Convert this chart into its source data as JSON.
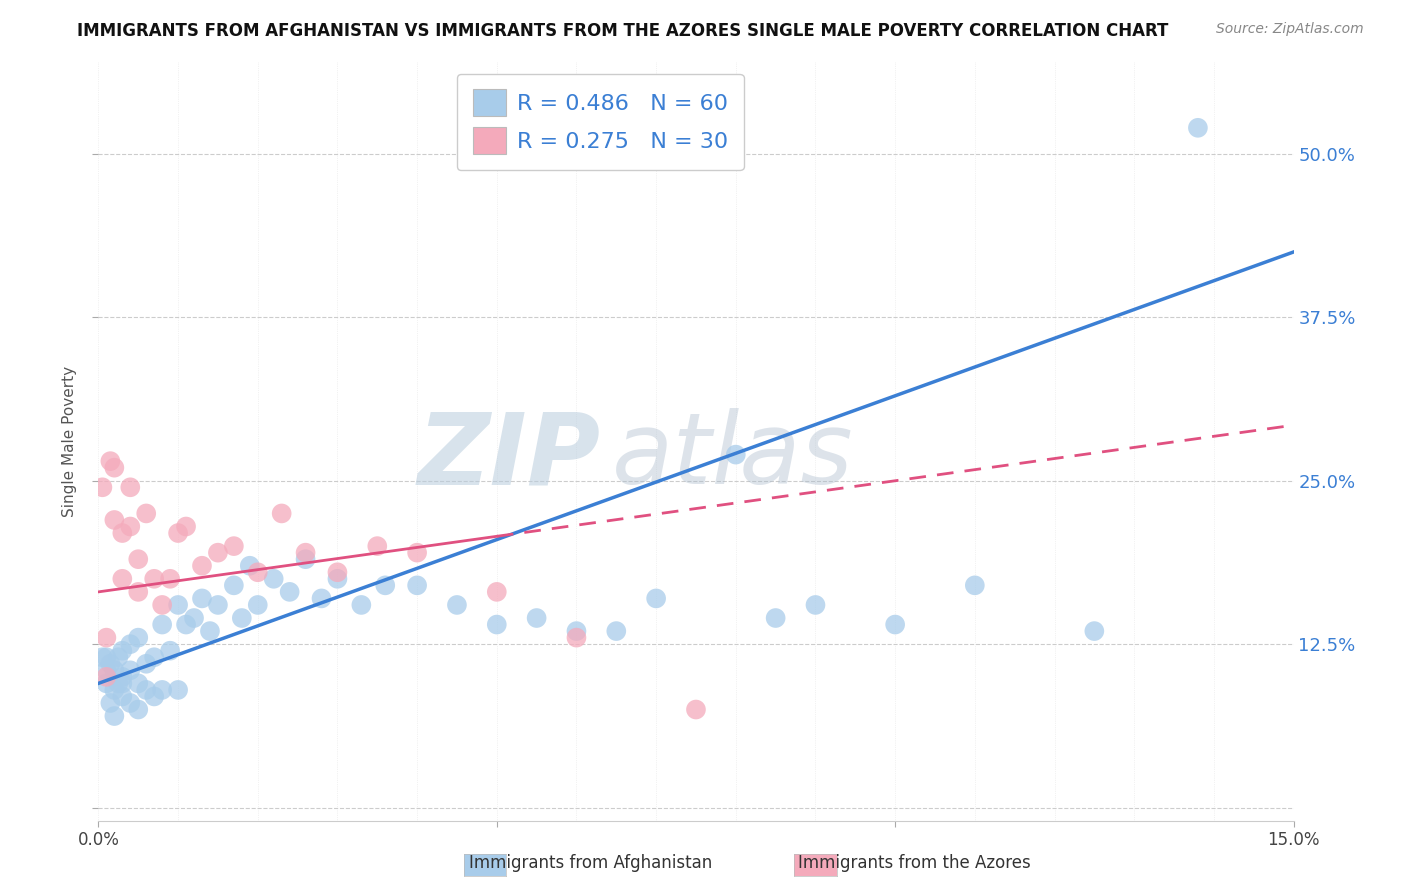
{
  "title": "IMMIGRANTS FROM AFGHANISTAN VS IMMIGRANTS FROM THE AZORES SINGLE MALE POVERTY CORRELATION CHART",
  "source": "Source: ZipAtlas.com",
  "xlabel_blue": "Immigrants from Afghanistan",
  "xlabel_pink": "Immigrants from the Azores",
  "ylabel": "Single Male Poverty",
  "R_blue": 0.486,
  "N_blue": 60,
  "R_pink": 0.275,
  "N_pink": 30,
  "color_blue": "#A8CCEA",
  "color_pink": "#F4AABB",
  "line_blue": "#3B7FD4",
  "line_pink": "#E05080",
  "xlim": [
    0.0,
    0.15
  ],
  "ylim": [
    -0.01,
    0.57
  ],
  "yticks": [
    0.0,
    0.125,
    0.25,
    0.375,
    0.5
  ],
  "ytick_labels": [
    "",
    "12.5%",
    "25.0%",
    "37.5%",
    "50.0%"
  ],
  "xticks": [
    0.0,
    0.05,
    0.1,
    0.15
  ],
  "xtick_labels": [
    "0.0%",
    "",
    "",
    "15.0%"
  ],
  "blue_x": [
    0.0005,
    0.001,
    0.001,
    0.001,
    0.0015,
    0.0015,
    0.002,
    0.002,
    0.002,
    0.0025,
    0.0025,
    0.003,
    0.003,
    0.003,
    0.003,
    0.004,
    0.004,
    0.004,
    0.005,
    0.005,
    0.005,
    0.006,
    0.006,
    0.007,
    0.007,
    0.008,
    0.008,
    0.009,
    0.01,
    0.01,
    0.011,
    0.012,
    0.013,
    0.014,
    0.015,
    0.017,
    0.018,
    0.019,
    0.02,
    0.022,
    0.024,
    0.026,
    0.028,
    0.03,
    0.033,
    0.036,
    0.04,
    0.045,
    0.05,
    0.055,
    0.06,
    0.065,
    0.07,
    0.08,
    0.085,
    0.09,
    0.1,
    0.11,
    0.125,
    0.138
  ],
  "blue_y": [
    0.115,
    0.105,
    0.115,
    0.095,
    0.11,
    0.08,
    0.105,
    0.09,
    0.07,
    0.115,
    0.095,
    0.12,
    0.1,
    0.085,
    0.095,
    0.125,
    0.105,
    0.08,
    0.13,
    0.095,
    0.075,
    0.11,
    0.09,
    0.115,
    0.085,
    0.14,
    0.09,
    0.12,
    0.155,
    0.09,
    0.14,
    0.145,
    0.16,
    0.135,
    0.155,
    0.17,
    0.145,
    0.185,
    0.155,
    0.175,
    0.165,
    0.19,
    0.16,
    0.175,
    0.155,
    0.17,
    0.17,
    0.155,
    0.14,
    0.145,
    0.135,
    0.135,
    0.16,
    0.27,
    0.145,
    0.155,
    0.14,
    0.17,
    0.135,
    0.52
  ],
  "pink_x": [
    0.0005,
    0.001,
    0.001,
    0.0015,
    0.002,
    0.002,
    0.003,
    0.003,
    0.004,
    0.004,
    0.005,
    0.005,
    0.006,
    0.007,
    0.008,
    0.009,
    0.01,
    0.011,
    0.013,
    0.015,
    0.017,
    0.02,
    0.023,
    0.026,
    0.03,
    0.035,
    0.04,
    0.05,
    0.06,
    0.075
  ],
  "pink_y": [
    0.245,
    0.13,
    0.1,
    0.265,
    0.26,
    0.22,
    0.21,
    0.175,
    0.245,
    0.215,
    0.165,
    0.19,
    0.225,
    0.175,
    0.155,
    0.175,
    0.21,
    0.215,
    0.185,
    0.195,
    0.2,
    0.18,
    0.225,
    0.195,
    0.18,
    0.2,
    0.195,
    0.165,
    0.13,
    0.075
  ],
  "watermark_line1": "ZIP",
  "watermark_line2": "atlas",
  "watermark_color": "#C8D8EE",
  "background_color": "#FFFFFF",
  "grid_color": "#CCCCCC",
  "blue_line_intercept": 0.095,
  "blue_line_slope": 2.2,
  "pink_line_intercept": 0.165,
  "pink_line_slope": 0.85
}
